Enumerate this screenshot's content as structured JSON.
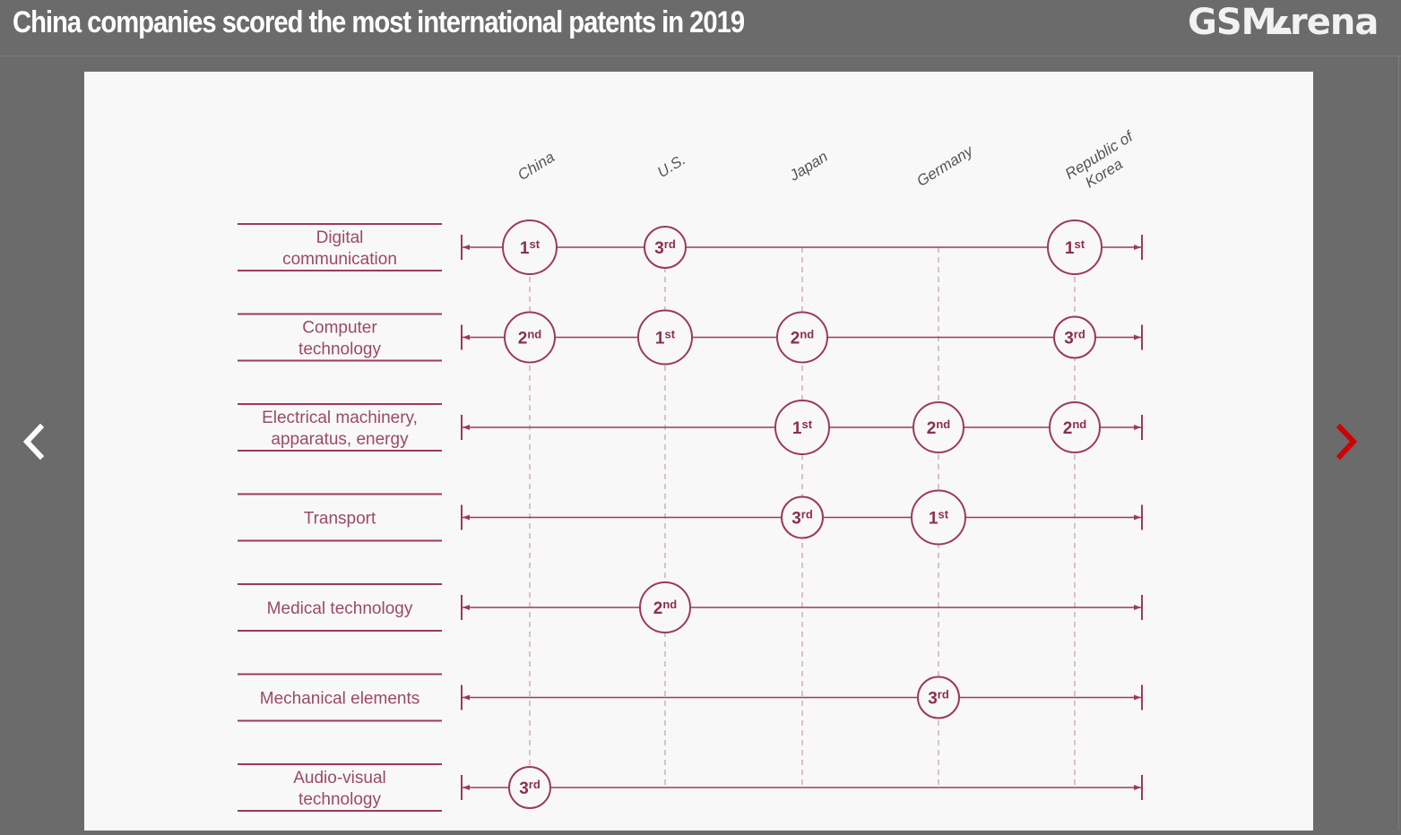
{
  "header": {
    "title": "China companies scored the most international patents in 2019",
    "logo_text": "GSMArena"
  },
  "navigation": {
    "prev_icon": "chevron-left-icon",
    "next_icon": "chevron-right-icon",
    "prev_color": "#ffffff",
    "next_color": "#d10000"
  },
  "colors": {
    "line": "#9b3a5a",
    "label_text": "#9b4a64",
    "country_text": "#555555",
    "rank_text": "#8c2e4e"
  },
  "chart_data": {
    "type": "table",
    "title": "China companies scored the most international patents in 2019",
    "columns": [
      "China",
      "U.S.",
      "Japan",
      "Germany",
      "Republic of Korea"
    ],
    "column_label_lines": [
      [
        "China"
      ],
      [
        "U.S."
      ],
      [
        "Japan"
      ],
      [
        "Germany"
      ],
      [
        "Republic of",
        "Korea"
      ]
    ],
    "rows": [
      {
        "field": "Digital communication",
        "label_lines": [
          "Digital",
          "communication"
        ],
        "ranks": [
          {
            "country": "China",
            "rank": "1st"
          },
          {
            "country": "U.S.",
            "rank": "3rd"
          },
          {
            "country": "Republic of Korea",
            "rank": "1st"
          }
        ]
      },
      {
        "field": "Computer technology",
        "label_lines": [
          "Computer",
          "technology"
        ],
        "ranks": [
          {
            "country": "China",
            "rank": "2nd"
          },
          {
            "country": "U.S.",
            "rank": "1st"
          },
          {
            "country": "Japan",
            "rank": "2nd"
          },
          {
            "country": "Republic of Korea",
            "rank": "3rd"
          }
        ]
      },
      {
        "field": "Electrical machinery, apparatus, energy",
        "label_lines": [
          "Electrical machinery,",
          "apparatus, energy"
        ],
        "ranks": [
          {
            "country": "Japan",
            "rank": "1st"
          },
          {
            "country": "Germany",
            "rank": "2nd"
          },
          {
            "country": "Republic of Korea",
            "rank": "2nd"
          }
        ]
      },
      {
        "field": "Transport",
        "label_lines": [
          "Transport"
        ],
        "ranks": [
          {
            "country": "Japan",
            "rank": "3rd"
          },
          {
            "country": "Germany",
            "rank": "1st"
          }
        ]
      },
      {
        "field": "Medical technology",
        "label_lines": [
          "Medical technology"
        ],
        "ranks": [
          {
            "country": "U.S.",
            "rank": "2nd"
          }
        ]
      },
      {
        "field": "Mechanical elements",
        "label_lines": [
          "Mechanical elements"
        ],
        "ranks": [
          {
            "country": "Germany",
            "rank": "3rd"
          }
        ]
      },
      {
        "field": "Audio-visual technology",
        "label_lines": [
          "Audio-visual",
          "technology"
        ],
        "ranks": [
          {
            "country": "China",
            "rank": "3rd"
          }
        ]
      }
    ]
  }
}
